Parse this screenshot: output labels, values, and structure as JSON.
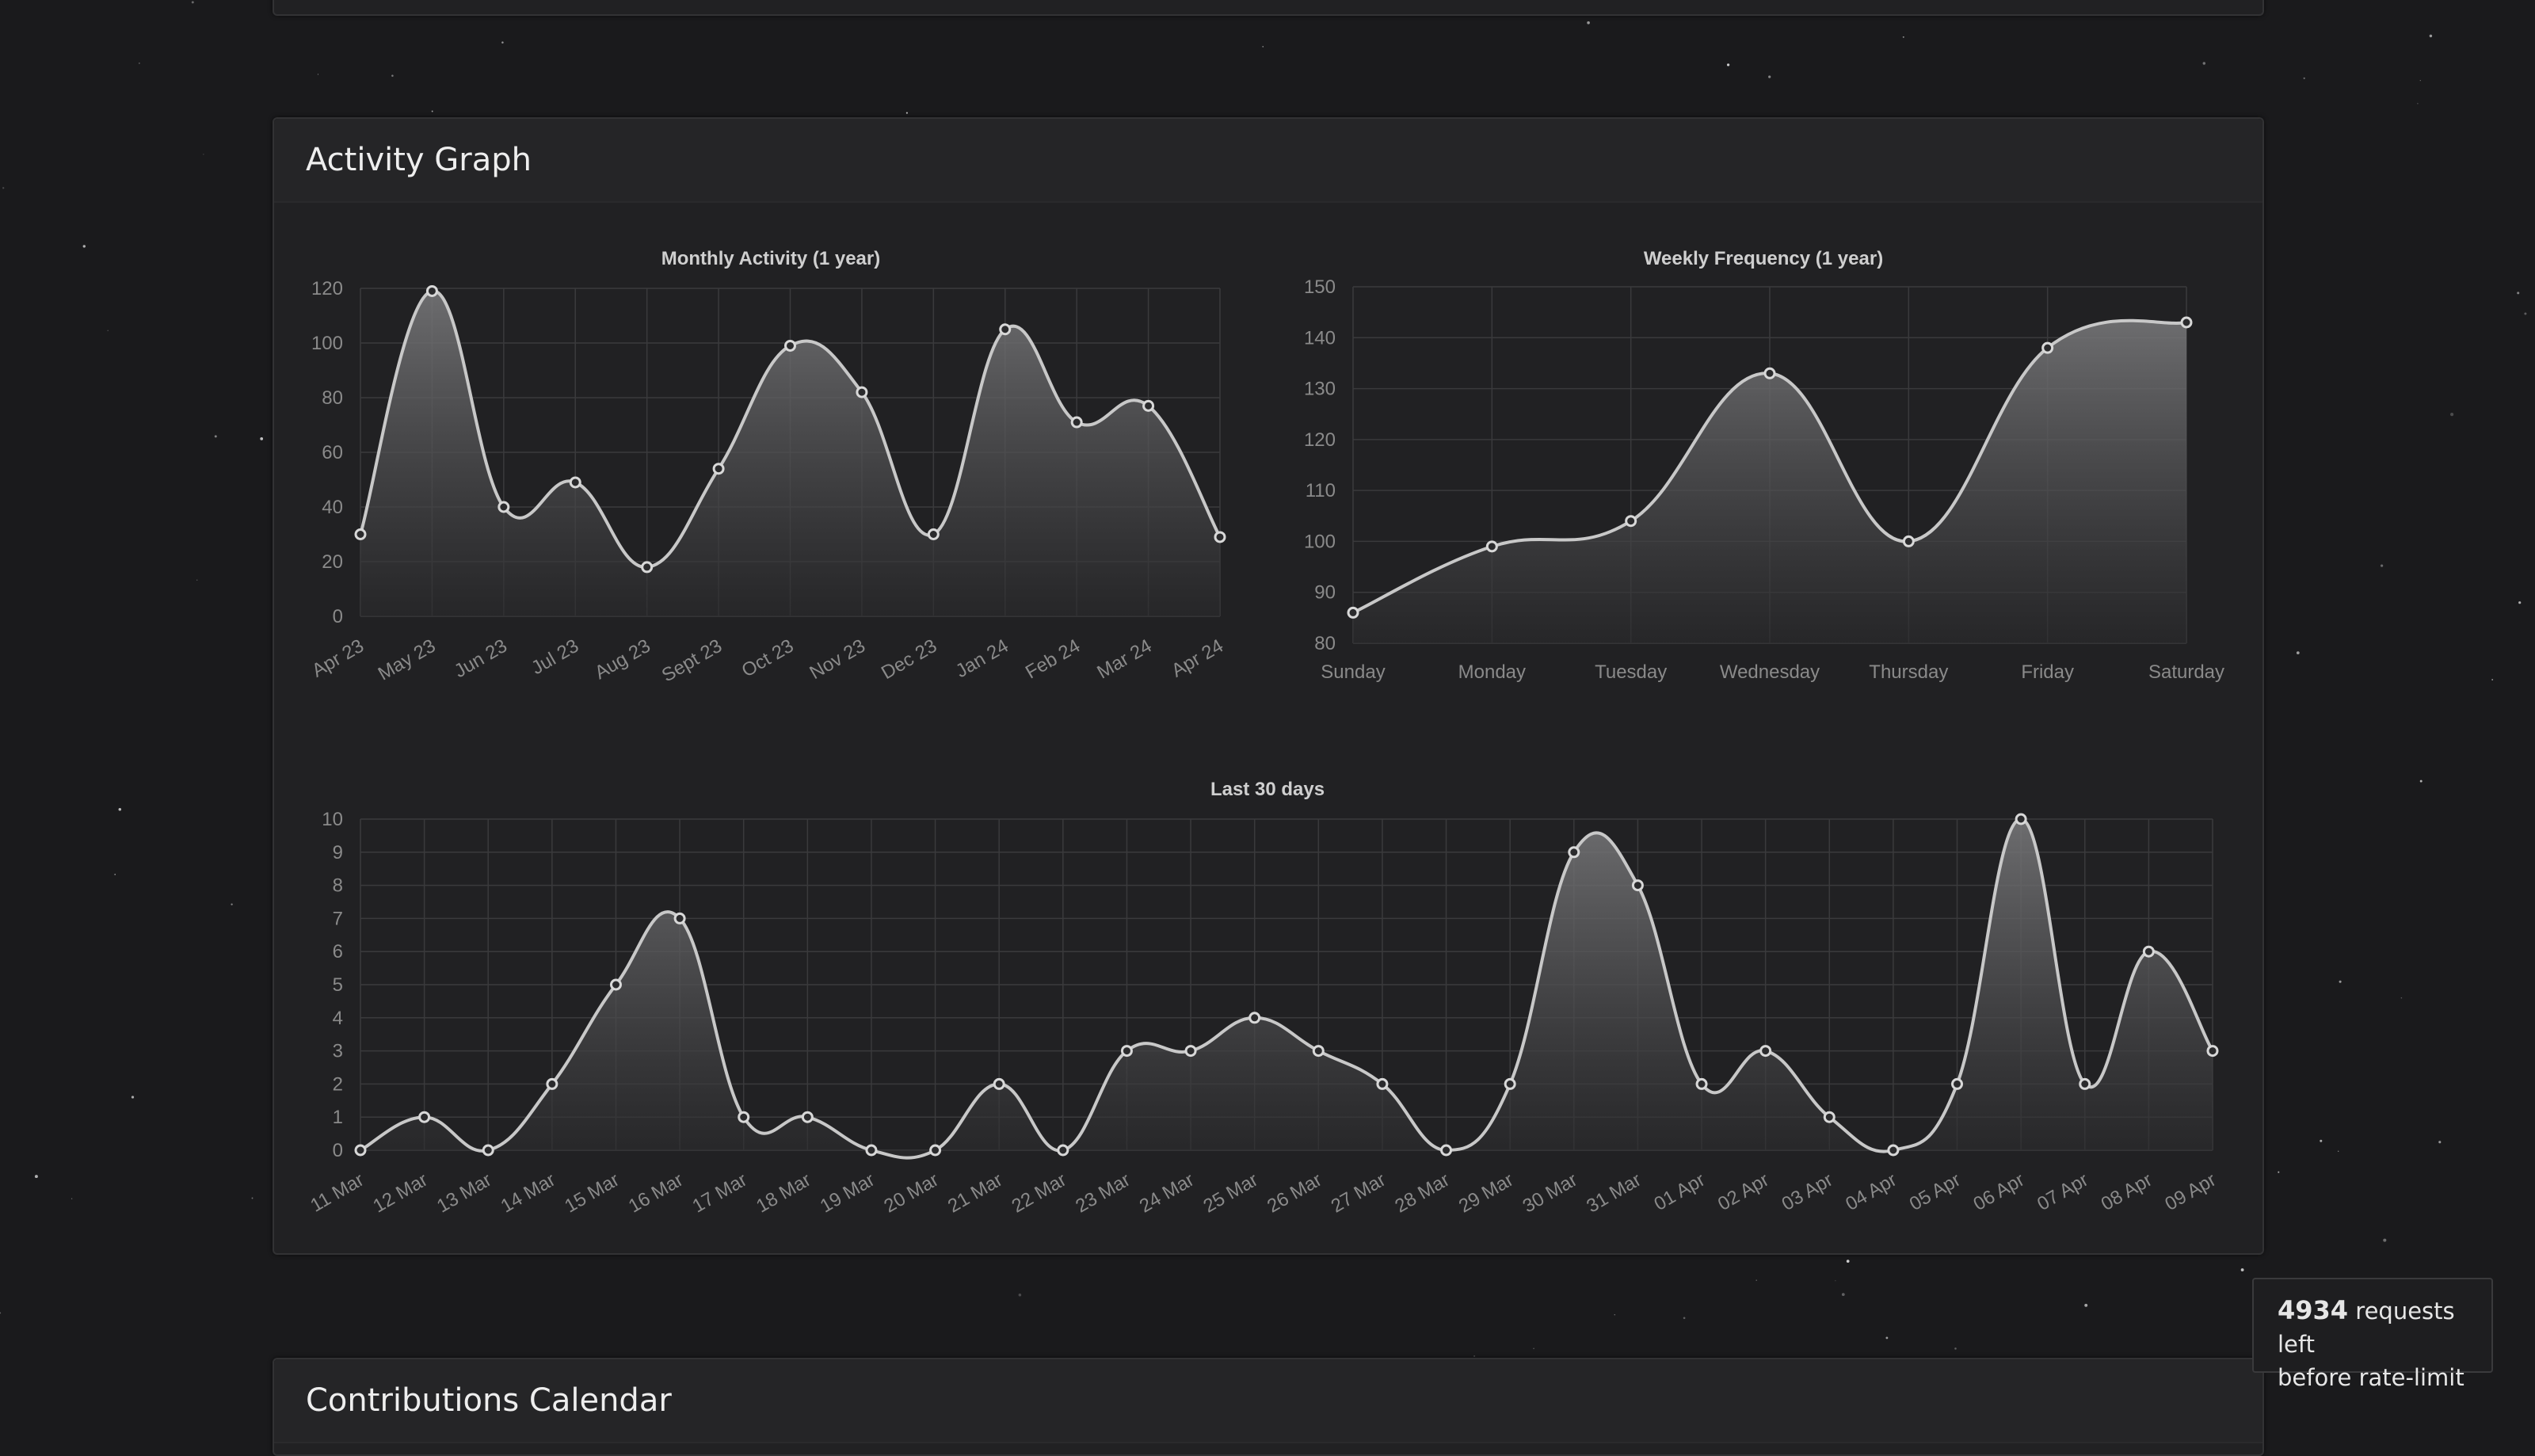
{
  "cards": {
    "activity_title": "Activity Graph",
    "contributions_title": "Contributions Calendar"
  },
  "rate_limit": {
    "count": "4934",
    "text1": " requests left",
    "text2": "before rate-limit"
  },
  "colors": {
    "background": "#1a1a1c",
    "card": "#212123",
    "line": "#c8c8c8",
    "fill_top": "#7a7a7c"
  },
  "chart_data": [
    {
      "type": "area",
      "title": "Monthly Activity (1 year)",
      "categories": [
        "Apr 23",
        "May 23",
        "Jun 23",
        "Jul 23",
        "Aug 23",
        "Sept 23",
        "Oct 23",
        "Nov 23",
        "Dec 23",
        "Jan 24",
        "Feb 24",
        "Mar 24",
        "Apr 24"
      ],
      "values": [
        30,
        119,
        40,
        49,
        18,
        54,
        99,
        82,
        30,
        105,
        71,
        77,
        29
      ],
      "ylim": [
        0,
        120
      ],
      "yticks": [
        0,
        20,
        40,
        60,
        80,
        100,
        120
      ],
      "grid": true
    },
    {
      "type": "area",
      "title": "Weekly Frequency (1 year)",
      "categories": [
        "Sunday",
        "Monday",
        "Tuesday",
        "Wednesday",
        "Thursday",
        "Friday",
        "Saturday"
      ],
      "values": [
        86,
        99,
        104,
        133,
        100,
        138,
        143
      ],
      "ylim": [
        80,
        150
      ],
      "yticks": [
        80,
        90,
        100,
        110,
        120,
        130,
        140,
        150
      ],
      "grid": true
    },
    {
      "type": "area",
      "title": "Last 30 days",
      "categories": [
        "11 Mar",
        "12 Mar",
        "13 Mar",
        "14 Mar",
        "15 Mar",
        "16 Mar",
        "17 Mar",
        "18 Mar",
        "19 Mar",
        "20 Mar",
        "21 Mar",
        "22 Mar",
        "23 Mar",
        "24 Mar",
        "25 Mar",
        "26 Mar",
        "27 Mar",
        "28 Mar",
        "29 Mar",
        "30 Mar",
        "31 Mar",
        "01 Apr",
        "02 Apr",
        "03 Apr",
        "04 Apr",
        "05 Apr",
        "06 Apr",
        "07 Apr",
        "08 Apr",
        "09 Apr"
      ],
      "values": [
        0,
        1,
        0,
        2,
        5,
        7,
        1,
        1,
        0,
        0,
        2,
        0,
        3,
        3,
        4,
        3,
        2,
        0,
        2,
        9,
        8,
        2,
        3,
        1,
        0,
        2,
        10,
        2,
        6,
        3
      ],
      "ylim": [
        0,
        10
      ],
      "yticks": [
        0,
        1,
        2,
        3,
        4,
        5,
        6,
        7,
        8,
        9,
        10
      ],
      "grid": true
    }
  ]
}
